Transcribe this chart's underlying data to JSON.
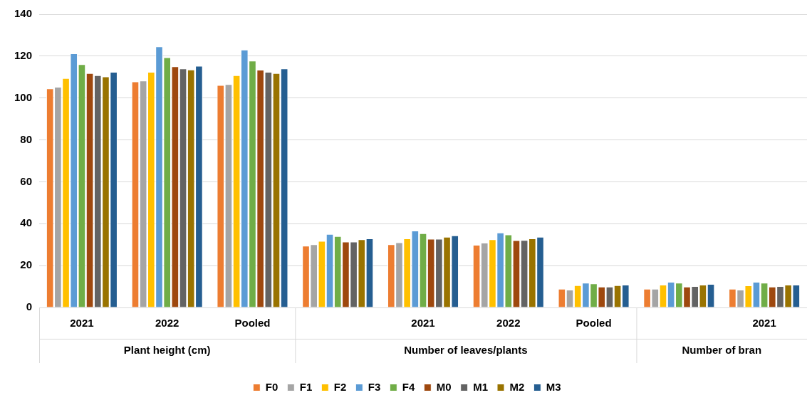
{
  "chart_data": {
    "type": "bar",
    "categories": [
      "2021",
      "2022",
      "Pooled",
      null,
      "2021",
      "2022",
      "Pooled",
      null,
      "2021"
    ],
    "series": [
      {
        "name": "F0",
        "color": "#ed7d31",
        "values": [
          104.6,
          107.9,
          106.2,
          29.5,
          30.2,
          29.9,
          8.9,
          8.9,
          8.9
        ]
      },
      {
        "name": "F1",
        "color": "#a5a5a5",
        "values": [
          105.3,
          108.3,
          106.6,
          30.2,
          31.1,
          30.9,
          8.5,
          8.9,
          8.5
        ]
      },
      {
        "name": "F2",
        "color": "#ffc000",
        "values": [
          109.5,
          112.5,
          110.9,
          31.8,
          33.0,
          32.5,
          10.6,
          10.9,
          10.5
        ]
      },
      {
        "name": "F3",
        "color": "#5b9bd5",
        "values": [
          121.3,
          124.6,
          123.1,
          35.1,
          36.7,
          35.8,
          11.8,
          12.2,
          12.2
        ]
      },
      {
        "name": "F4",
        "color": "#70ad47",
        "values": [
          116.1,
          119.4,
          117.8,
          34.1,
          35.4,
          34.8,
          11.5,
          11.8,
          11.8
        ]
      },
      {
        "name": "M0",
        "color": "#9e480e",
        "values": [
          111.9,
          115.1,
          113.5,
          31.4,
          32.8,
          32.1,
          9.9,
          9.9,
          9.9
        ]
      },
      {
        "name": "M1",
        "color": "#636363",
        "values": [
          110.9,
          114.1,
          112.5,
          31.4,
          32.8,
          32.2,
          9.9,
          10.2,
          10.2
        ]
      },
      {
        "name": "M2",
        "color": "#997300",
        "values": [
          110.3,
          113.6,
          111.9,
          32.5,
          33.7,
          33.0,
          10.6,
          10.9,
          10.9
        ]
      },
      {
        "name": "M3",
        "color": "#255e91",
        "values": [
          112.5,
          115.4,
          114.1,
          33.0,
          34.4,
          33.7,
          10.9,
          11.2,
          10.9
        ]
      }
    ],
    "ylim": [
      0,
      140
    ],
    "yticks": [
      0,
      20,
      40,
      60,
      80,
      100,
      120,
      140
    ],
    "grid": "y",
    "legend": "bottom",
    "annotations": [
      "Plant height (cm)",
      "Number of leaves/plants",
      "Number of bran"
    ]
  }
}
